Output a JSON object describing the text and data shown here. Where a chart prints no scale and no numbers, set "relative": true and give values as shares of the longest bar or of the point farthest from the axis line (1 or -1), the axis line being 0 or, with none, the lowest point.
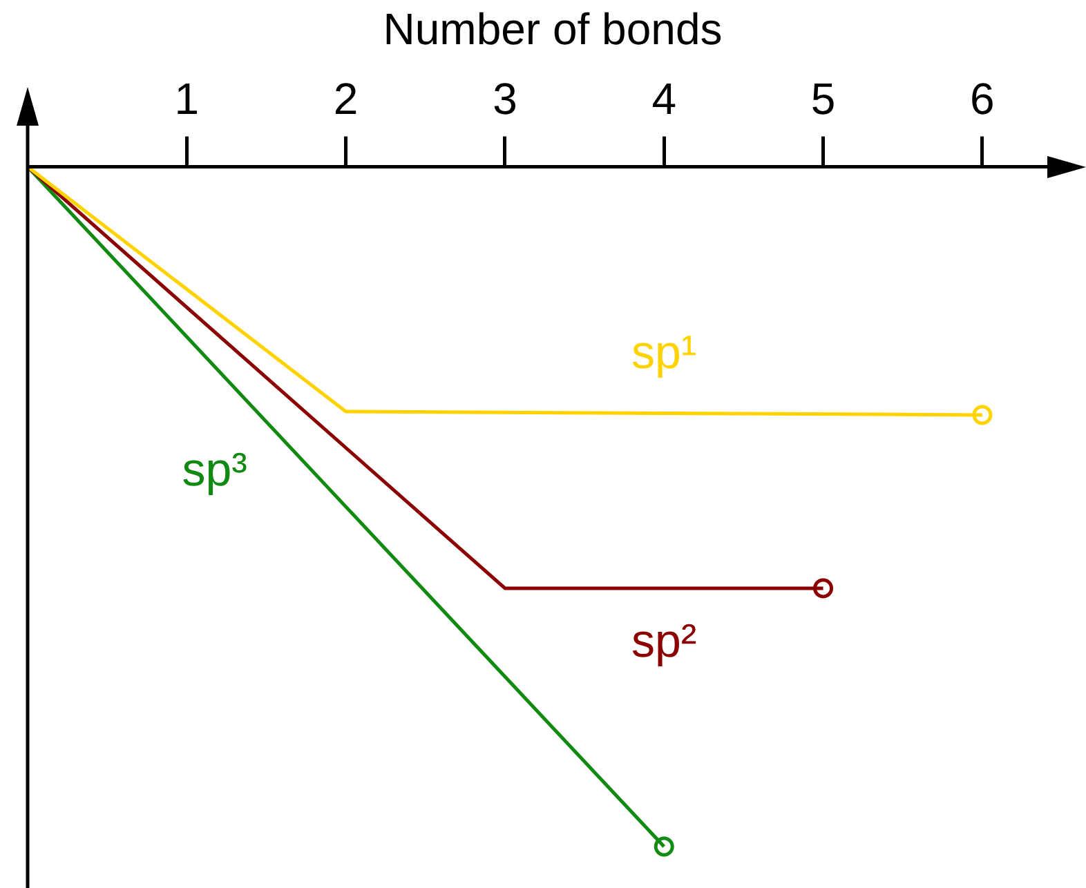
{
  "chart_data": {
    "type": "line",
    "relative": true,
    "xlabel": "Number of bonds",
    "xlim": [
      0,
      6.6
    ],
    "xticks": [
      1,
      2,
      3,
      4,
      5,
      6
    ],
    "grid": false,
    "legend": false,
    "line_style": "solid",
    "series": [
      {
        "name": "sp¹",
        "color": "#ffd200",
        "marker": "none",
        "x": [
          0,
          2,
          6
        ],
        "values": [
          0,
          -0.36,
          -0.365
        ]
      },
      {
        "name": "sp²",
        "color": "#8b0000",
        "marker": "none",
        "x": [
          0,
          3,
          5
        ],
        "values": [
          0,
          -0.62,
          -0.62
        ]
      },
      {
        "name": "sp³",
        "color": "#108a10",
        "marker": "none",
        "x": [
          0,
          4
        ],
        "values": [
          0,
          -1
        ]
      },
      {
        "type": "scatter",
        "color": "#ffd400",
        "marker": "circle",
        "x": [
          6
        ],
        "values": [
          -0.365
        ]
      },
      {
        "type": "scatter",
        "color": "#8d0000",
        "marker": "circle",
        "x": [
          5
        ],
        "values": [
          -0.62
        ]
      },
      {
        "type": "scatter",
        "color": "#128c12",
        "marker": "circle",
        "x": [
          4
        ],
        "values": [
          -1
        ]
      }
    ]
  }
}
